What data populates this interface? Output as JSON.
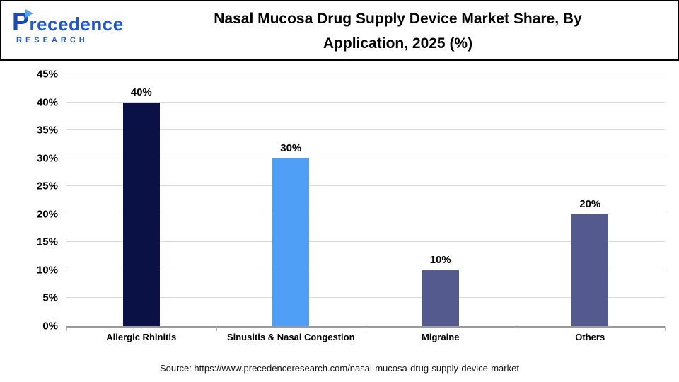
{
  "header": {
    "logo": {
      "name": "Precedence",
      "sub": "RESEARCH"
    },
    "title_line1": "Nasal Mucosa Drug Supply Device Market Share, By",
    "title_line2": "Application, 2025 (%)"
  },
  "chart_data": {
    "type": "bar",
    "title": "Nasal Mucosa Drug Supply Device Market Share, By Application, 2025 (%)",
    "categories": [
      "Allergic Rhinitis",
      "Sinusitis & Nasal Congestion",
      "Migraine",
      "Others"
    ],
    "values": [
      40,
      30,
      10,
      20
    ],
    "value_labels": [
      "40%",
      "30%",
      "10%",
      "20%"
    ],
    "bar_colors": [
      "#0a1145",
      "#4e9ff5",
      "#545a8d",
      "#545a8d"
    ],
    "ylim": [
      0,
      45
    ],
    "ytick_step": 5,
    "ytick_labels": [
      "0%",
      "5%",
      "10%",
      "15%",
      "20%",
      "25%",
      "30%",
      "35%",
      "40%",
      "45%"
    ],
    "xlabel": "",
    "ylabel": "",
    "grid": true,
    "legend": false
  },
  "footer": {
    "source": "Source: https://www.precedenceresearch.com/nasal-mucosa-drug-supply-device-market"
  }
}
